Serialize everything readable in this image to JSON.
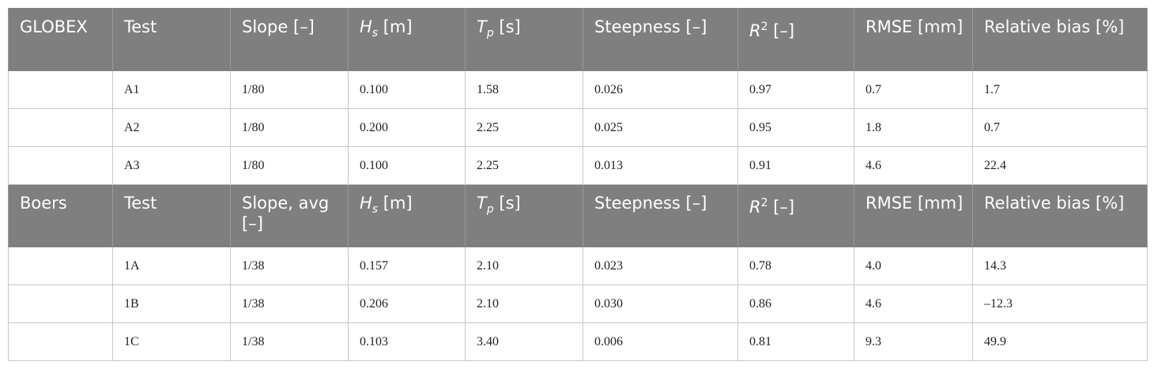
{
  "sections": [
    {
      "header": [
        "GLOBEX",
        "Test",
        "Slope [–]",
        {
          "symbol": "H",
          "sub": "s",
          "unit": "[m]"
        },
        {
          "symbol": "T",
          "sub": "p",
          "unit": "[s]"
        },
        "Steepness [–]",
        {
          "symbol": "R",
          "sup": "2",
          "unit": "[–]"
        },
        "RMSE [mm]",
        "Relative bias [%]"
      ],
      "rows": [
        [
          "A1",
          "1/80",
          "0.100",
          "1.58",
          "0.026",
          "0.97",
          "0.7",
          "1.7"
        ],
        [
          "A2",
          "1/80",
          "0.200",
          "2.25",
          "0.025",
          "0.95",
          "1.8",
          "0.7"
        ],
        [
          "A3",
          "1/80",
          "0.100",
          "2.25",
          "0.013",
          "0.91",
          "4.6",
          "22.4"
        ]
      ]
    },
    {
      "header": [
        "Boers",
        "Test",
        "Slope, avg [–]",
        {
          "symbol": "H",
          "sub": "s",
          "unit": "[m]"
        },
        {
          "symbol": "T",
          "sub": "p",
          "unit": "[s]"
        },
        "Steepness [–]",
        {
          "symbol": "R",
          "sup": "2",
          "unit": "[–]"
        },
        "RMSE [mm]",
        "Relative bias [%]"
      ],
      "rows": [
        [
          "1A",
          "1/38",
          "0.157",
          "2.10",
          "0.023",
          "0.78",
          "4.0",
          "14.3"
        ],
        [
          "1B",
          "1/38",
          "0.206",
          "2.10",
          "0.030",
          "0.86",
          "4.6",
          "–12.3"
        ],
        [
          "1C",
          "1/38",
          "0.103",
          "3.40",
          "0.006",
          "0.81",
          "9.3",
          "49.9"
        ]
      ]
    }
  ]
}
